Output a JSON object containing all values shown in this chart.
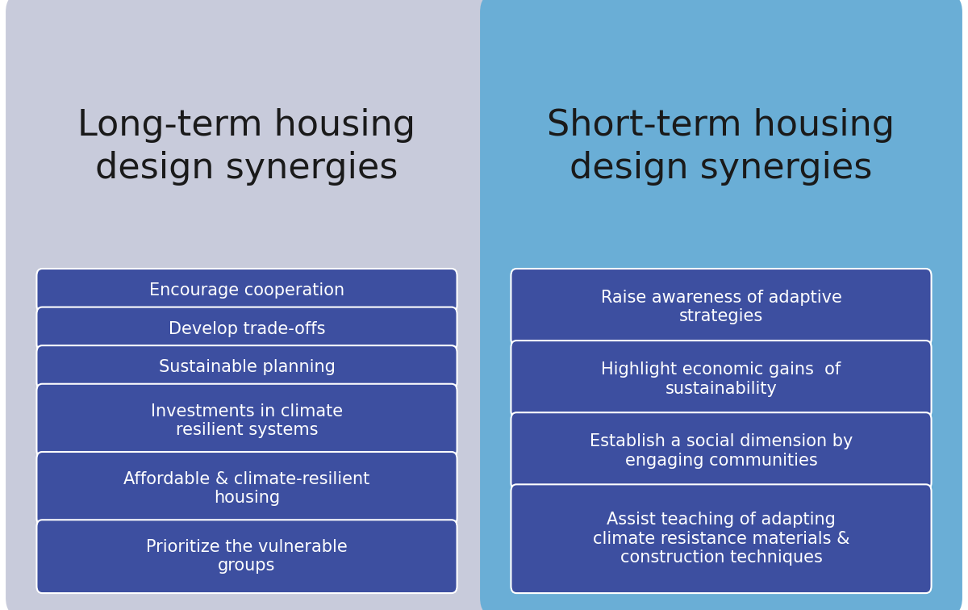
{
  "left_panel": {
    "title": "Long-term housing\ndesign synergies",
    "bg_color": "#c8cbdb",
    "items": [
      "Encourage cooperation",
      "Develop trade-offs",
      "Sustainable planning",
      "Investments in climate\nresilient systems",
      "Affordable & climate-resilient\nhousing",
      "Prioritize the vulnerable\ngroups"
    ]
  },
  "right_panel": {
    "title": "Short-term housing\ndesign synergies",
    "bg_color": "#6aaed6",
    "items": [
      "Raise awareness of adaptive\nstrategies",
      "Highlight economic gains  of\nsustainability",
      "Establish a social dimension by\nengaging communities",
      "Assist teaching of adapting\nclimate resistance materials &\nconstruction techniques"
    ]
  },
  "box_color": "#3d4fa0",
  "box_text_color": "#ffffff",
  "title_text_color": "#1a1a1a",
  "title_fontsize": 32,
  "item_fontsize": 15,
  "fig_bg_color": "#ffffff"
}
